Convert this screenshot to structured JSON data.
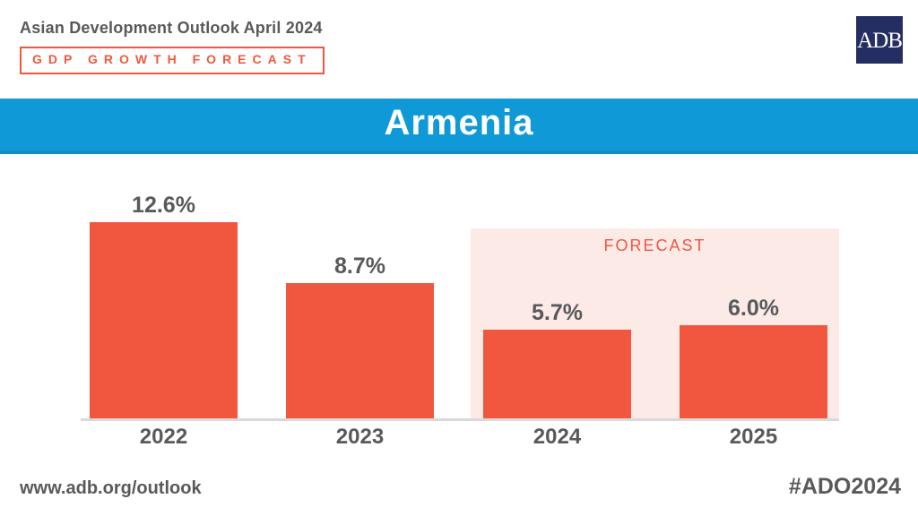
{
  "header": {
    "report_title": "Asian Development Outlook April 2024",
    "series_badge": "GDP GROWTH FORECAST",
    "logo_text": "ADB"
  },
  "title": {
    "country": "Armenia"
  },
  "chart_data": {
    "type": "bar",
    "title": "GDP Growth Forecast — Armenia",
    "categories": [
      "2022",
      "2023",
      "2024",
      "2025"
    ],
    "values": [
      12.6,
      8.7,
      5.7,
      6.0
    ],
    "value_labels": [
      "12.6%",
      "8.7%",
      "5.7%",
      "6.0%"
    ],
    "unit": "%",
    "forecast_label": "FORECAST",
    "forecast_categories": [
      "2024",
      "2025"
    ],
    "ylim": [
      0,
      14
    ],
    "grid": false,
    "legend": false
  },
  "footer": {
    "url": "www.adb.org/outlook",
    "hashtag": "#ADO2024"
  },
  "colors": {
    "bar": "#F1573E",
    "forecast_bg": "#FCEAE7",
    "forecast_text": "#EE5744",
    "band_blue": "#0F99D6",
    "band_blue_edge": "#0E8CC4",
    "logo_navy": "#252E62",
    "text_gray": "#58595B",
    "axis_gray": "#D9D9D9"
  }
}
